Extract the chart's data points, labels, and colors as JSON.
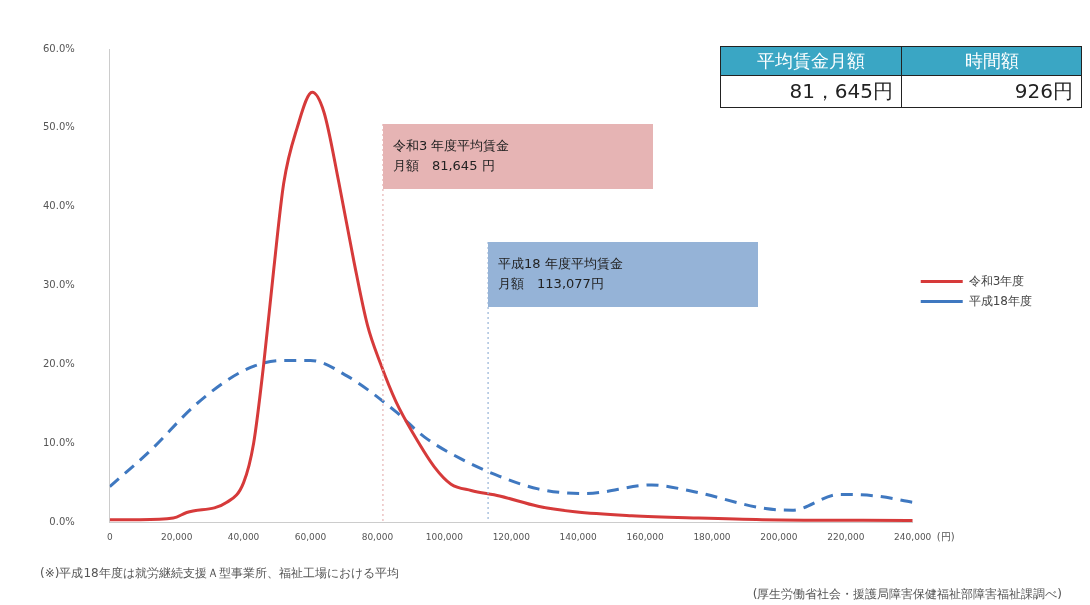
{
  "chart_data": [
    {
      "type": "line",
      "xlabel": "(円)",
      "xlim": [
        0,
        240000
      ],
      "xticks": [
        0,
        {
          "value": 20000,
          "label": "20,000"
        },
        {
          "value": 40000,
          "label": "40,000"
        },
        {
          "value": 60000,
          "label": "60,000"
        },
        {
          "value": 80000,
          "label": "80,000"
        },
        {
          "value": 100000,
          "label": "100,000"
        },
        {
          "value": 120000,
          "label": "120,000"
        },
        {
          "value": 140000,
          "label": "140,000"
        },
        {
          "value": 160000,
          "label": "160,000"
        },
        {
          "value": 180000,
          "label": "180,000"
        },
        {
          "value": 200000,
          "label": "200,000"
        },
        {
          "value": 220000,
          "label": "220,000"
        },
        {
          "value": 240000,
          "label": "240,000"
        }
      ],
      "ylim": [
        0,
        60
      ],
      "yticks": [
        {
          "value": 0,
          "label": "0.0%"
        },
        {
          "value": 10,
          "label": "10.0%"
        },
        {
          "value": 20,
          "label": "20.0%"
        },
        {
          "value": 30,
          "label": "30.0%"
        },
        {
          "value": 40,
          "label": "40.0%"
        },
        {
          "value": 50,
          "label": "50.0%"
        },
        {
          "value": 60,
          "label": "60.0%"
        }
      ],
      "grid": false,
      "legend": "right",
      "marker": "none",
      "series": [
        {
          "name": "令和3年度",
          "color": "#d63a3a",
          "line_style": "solid",
          "x": [
            0,
            9000,
            19000,
            23000,
            35000,
            40000,
            43000,
            46000,
            49000,
            52000,
            56000,
            60500,
            64000,
            68500,
            73000,
            77000,
            81000,
            85500,
            91000,
            97000,
            102000,
            108000,
            116500,
            128000,
            139000,
            156000,
            176000,
            195000,
            240000
          ],
          "values": [
            0.3,
            0.3,
            0.5,
            1.2,
            2.5,
            5,
            10,
            20,
            32,
            43,
            50,
            54.5,
            52,
            43,
            33,
            25,
            20,
            15.3,
            11,
            7,
            4.8,
            4,
            3.3,
            2,
            1.3,
            0.8,
            0.5,
            0.3,
            0.2
          ]
        },
        {
          "name": "平成18年度",
          "color": "#3f78c0",
          "line_style": "dashed",
          "x": [
            0,
            12000,
            26000,
            40000,
            51500,
            60000,
            71000,
            85500,
            94000,
            105000,
            116500,
            128000,
            142000,
            162000,
            173000,
            196000,
            204000,
            218000,
            229000,
            240000
          ],
          "values": [
            4.5,
            9,
            15,
            19.2,
            20.5,
            20.5,
            18.5,
            14,
            10.8,
            8,
            5.8,
            4.2,
            3.6,
            4.7,
            4,
            1.7,
            1.5,
            3.5,
            3.3,
            2.5
          ]
        }
      ],
      "ref_lines": [
        {
          "axis": "x",
          "value": 81645,
          "label": "令和3 年度平均賃金月額　81,645 円",
          "color": "#e6b4b4",
          "line_style": "dotted"
        },
        {
          "axis": "x",
          "value": 113077,
          "label": "平成18 年度平均賃金月額　113,077円",
          "color": "#95b3d7",
          "line_style": "dotted"
        }
      ],
      "annotations": [
        "(※)平成18年度は就労継続支援Ａ型事業所、福祉工場における平均",
        "(厚生労働省社会・援護局障害保健福祉部障害福祉課調べ)"
      ]
    },
    {
      "type": "other",
      "categories": [
        "平均賃金月額",
        "時間額"
      ],
      "annotations": [
        "81，645円",
        "926円"
      ],
      "color": "#3aa6c4"
    }
  ]
}
